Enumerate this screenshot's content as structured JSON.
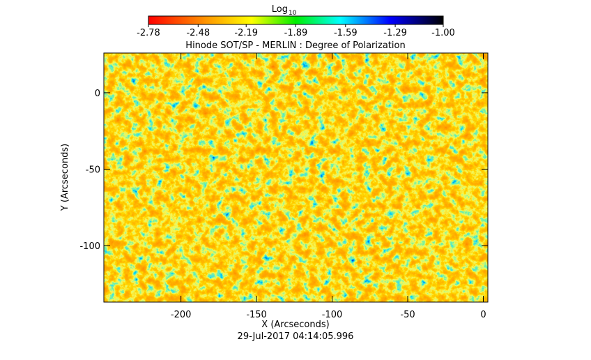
{
  "chart_data": {
    "type": "heatmap",
    "title": "Hinode SOT/SP - MERLIN : Degree of Polarization",
    "x_label": "X (Arcseconds)",
    "y_label": "Y (Arcseconds)",
    "xlim": [
      -251,
      3
    ],
    "xticks": [
      -200,
      -150,
      -100,
      -50,
      0
    ],
    "ylim": [
      -137,
      26
    ],
    "yticks": [
      -100,
      -50,
      0
    ],
    "colorbar": {
      "title": "Log",
      "title_subscript": "10",
      "lim": [
        -2.78,
        -1.0
      ],
      "ticks": [
        -2.78,
        -2.48,
        -2.19,
        -1.89,
        -1.59,
        -1.29,
        {
          "value": -1.0,
          "label": "-1.00"
        }
      ]
    },
    "footer": "29-Jul-2017 04:14:05.996"
  }
}
